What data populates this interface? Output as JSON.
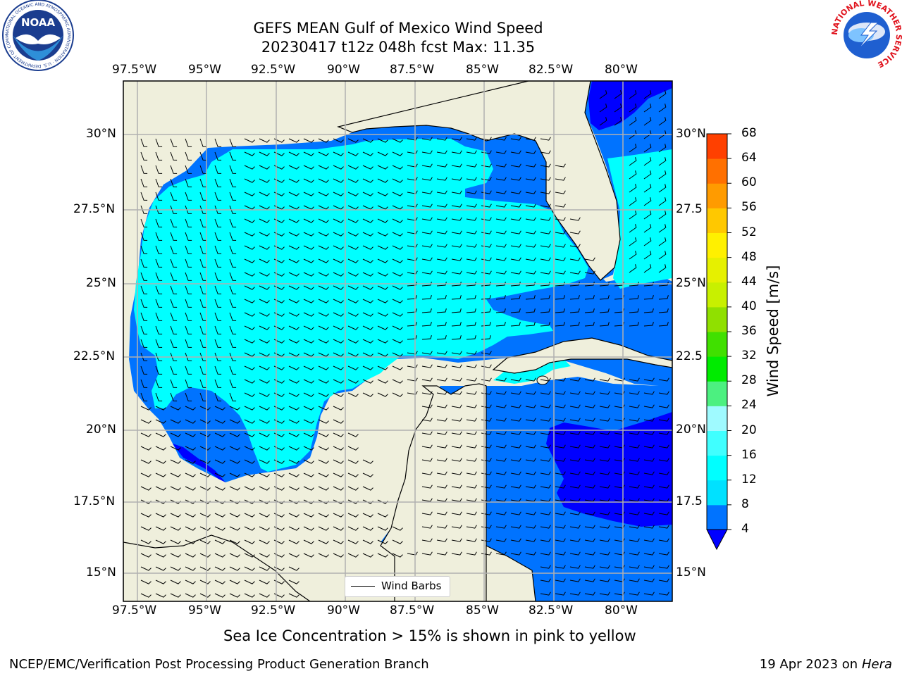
{
  "header": {
    "title_line1": "GEFS MEAN Gulf of Mexico Wind Speed",
    "title_line2": "20230417 t12z 048h fcst   Max: 11.35"
  },
  "logos": {
    "left_ring_text": "NATIONAL OCEANIC AND ATMOSPHERIC ADMINISTRATION · U.S. DEPARTMENT OF COMMERCE",
    "left_center": "NOAA",
    "right_ring_text": "NATIONAL WEATHER SERVICE"
  },
  "axes": {
    "lon_labels": [
      "97.5°W",
      "95°W",
      "92.5°W",
      "90°W",
      "87.5°W",
      "85°W",
      "82.5°W",
      "80°W"
    ],
    "lat_labels": [
      "30°N",
      "27.5°N",
      "25°N",
      "22.5°N",
      "20°N",
      "17.5°N",
      "15°N"
    ],
    "lat_labels_right": [
      "30°N",
      "27.5",
      "25°N",
      "22.5",
      "20°N",
      "17.5",
      "15°N"
    ]
  },
  "legend": {
    "wind_barbs_label": "Wind Barbs"
  },
  "colorbar": {
    "label": "Wind Speed [m/s]",
    "ticks": [
      "4",
      "8",
      "12",
      "16",
      "20",
      "24",
      "28",
      "32",
      "36",
      "40",
      "44",
      "48",
      "52",
      "56",
      "60",
      "64",
      "68"
    ],
    "colors": [
      "#0073ff",
      "#00e1ff",
      "#00ffff",
      "#40ffff",
      "#9ffaff",
      "#4cf080",
      "#00eb00",
      "#40e000",
      "#90e000",
      "#c8f000",
      "#e6f000",
      "#fff000",
      "#ffc800",
      "#ff9b00",
      "#ff7000",
      "#ff4000",
      "#ff0000"
    ],
    "under_color": "#0000ff"
  },
  "colors": {
    "land": "#efefdc",
    "level_4_8": "#0073ff",
    "level_8_12": "#00ffff",
    "below_4": "#0000ff",
    "grid": "#b0b0b0"
  },
  "caption": "Sea Ice Concentration > 15% is shown in pink to yellow",
  "footer": {
    "left": "NCEP/EMC/Verification Post Processing Product Generation Branch",
    "date": "19 Apr 2023 on ",
    "machine": "Hera"
  }
}
